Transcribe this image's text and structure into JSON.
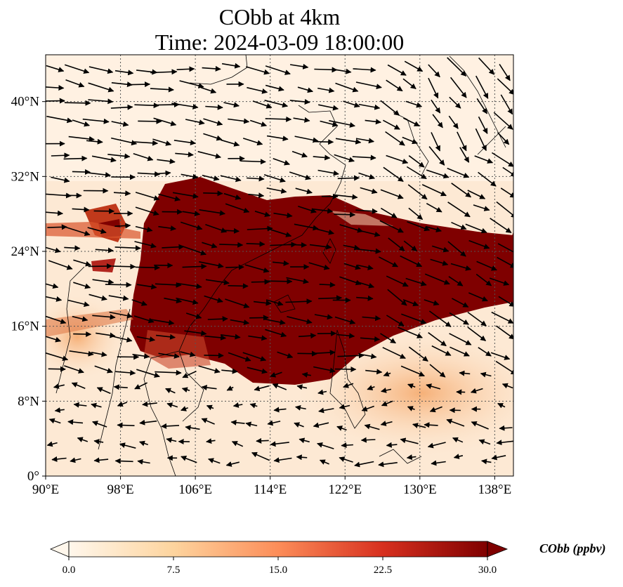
{
  "title": {
    "line1": "CObb at 4km",
    "line2": "Time: 2024-03-09 18:00:00"
  },
  "map": {
    "variable": "CObb",
    "level": "4km",
    "lon_range": [
      90,
      140
    ],
    "lat_range": [
      0,
      45
    ],
    "lon_ticks": [
      90,
      98,
      106,
      114,
      122,
      130,
      138
    ],
    "lon_tick_labels": [
      "90°E",
      "98°E",
      "106°E",
      "114°E",
      "122°E",
      "130°E",
      "138°E"
    ],
    "lat_ticks": [
      0,
      8,
      16,
      24,
      32,
      40
    ],
    "lat_tick_labels": [
      "0°",
      "8°N",
      "16°N",
      "24°N",
      "32°N",
      "40°N"
    ],
    "gridlines": true,
    "wind_vectors": true,
    "colors": {
      "low": "#fff5eb",
      "mid": "#fdae6b",
      "high": "#e6550d",
      "max": "#7f0000",
      "coast": "#000000"
    }
  },
  "colorbar": {
    "label": "CObb (ppbv)",
    "min": 0.0,
    "max": 30.0,
    "ticks": [
      "0.0",
      "7.5",
      "15.0",
      "22.5",
      "30.0"
    ],
    "extend": "both",
    "cmap": "OrRd"
  }
}
